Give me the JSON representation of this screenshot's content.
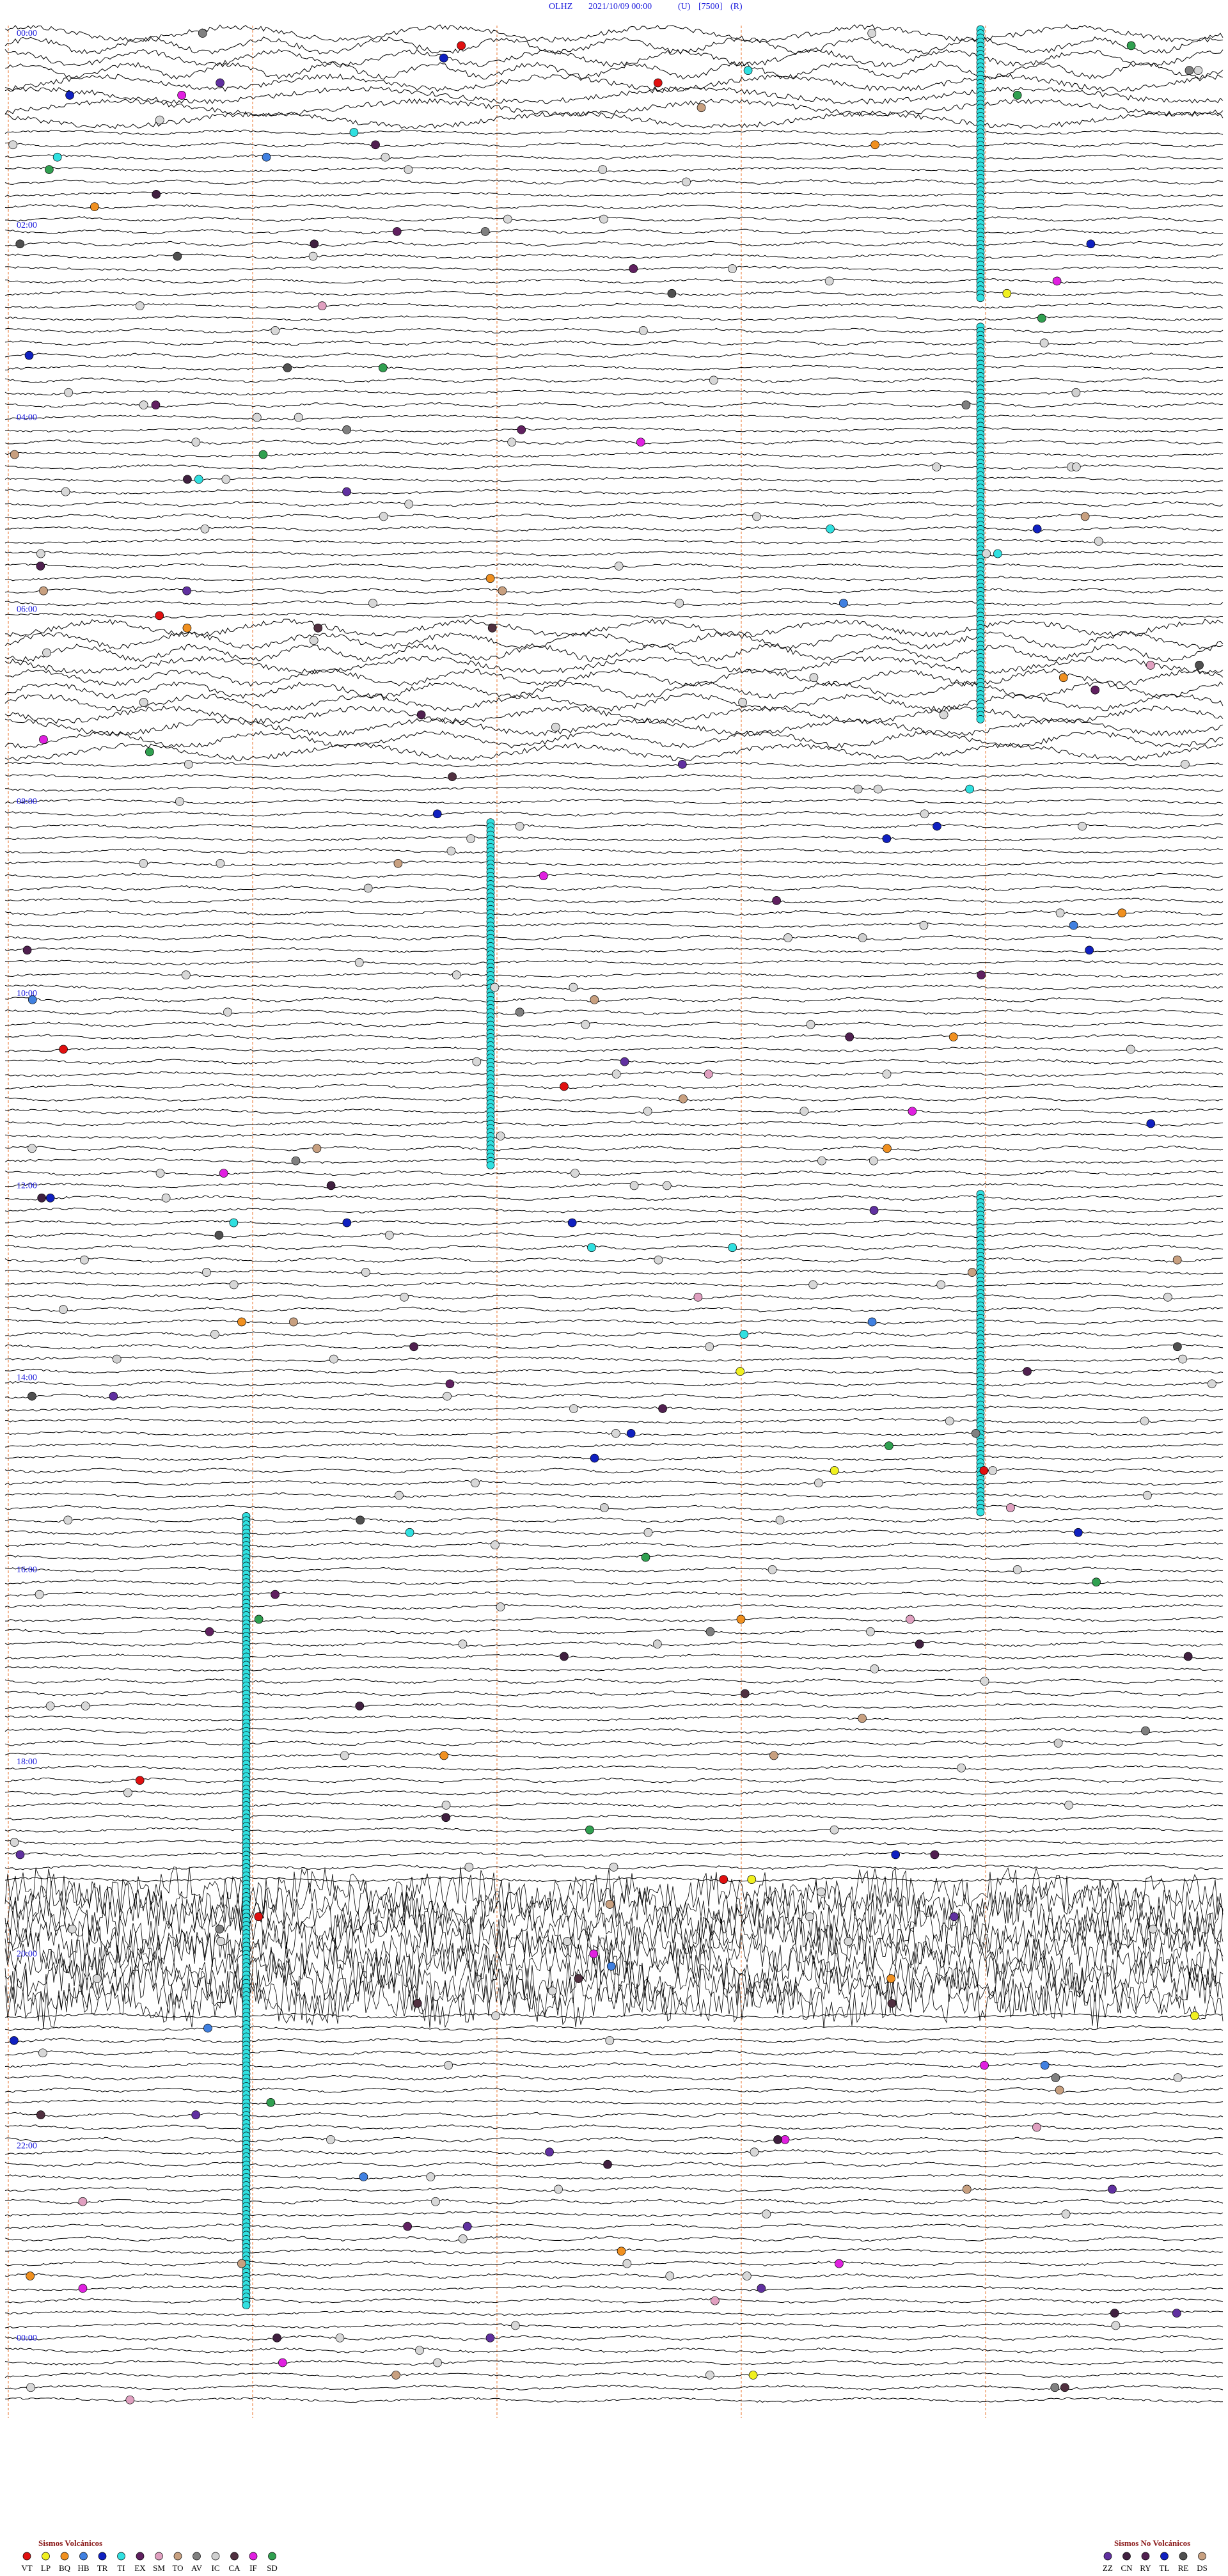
{
  "header": {
    "station": "OLHZ",
    "datetime": "2021/10/09 00:00",
    "component": "(U)",
    "scale": "[7500]",
    "mode": "(R)"
  },
  "time_labels": [
    "00:00",
    "02:00",
    "04:00",
    "06:00",
    "08:00",
    "10:00",
    "12:00",
    "14:00",
    "16:00",
    "18:00",
    "20:00",
    "22:00",
    "00:00"
  ],
  "legend_volcanic": {
    "title": "Sismos Volcánicos",
    "items": [
      {
        "code": "VT",
        "color": "#e01010"
      },
      {
        "code": "LP",
        "color": "#f0f020"
      },
      {
        "code": "BQ",
        "color": "#f09020"
      },
      {
        "code": "HB",
        "color": "#4080e0"
      },
      {
        "code": "TR",
        "color": "#1020c0"
      },
      {
        "code": "TI",
        "color": "#30e0e0"
      },
      {
        "code": "EX",
        "color": "#602060"
      },
      {
        "code": "SM",
        "color": "#e0a0c0"
      },
      {
        "code": "TO",
        "color": "#c8a080"
      },
      {
        "code": "AV",
        "color": "#808080"
      },
      {
        "code": "IC",
        "color": "#d0d0d0"
      },
      {
        "code": "CA",
        "color": "#503040"
      },
      {
        "code": "IF",
        "color": "#e020e0"
      },
      {
        "code": "SD",
        "color": "#30a050"
      }
    ]
  },
  "legend_non_volcanic": {
    "title": "Sismos No Volcánicos",
    "items": [
      {
        "code": "ZZ",
        "color": "#6030a0"
      },
      {
        "code": "CN",
        "color": "#402040"
      },
      {
        "code": "RY",
        "color": "#502050"
      },
      {
        "code": "TL",
        "color": "#1020c0"
      },
      {
        "code": "RE",
        "color": "#505050"
      },
      {
        "code": "DS",
        "color": "#c8a080"
      }
    ]
  }
}
